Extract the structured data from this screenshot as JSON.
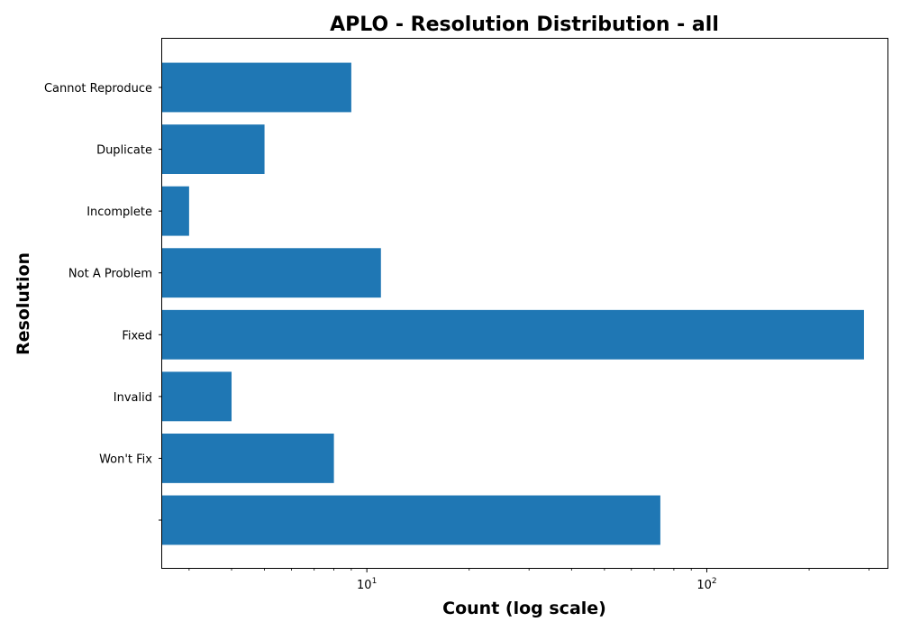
{
  "chart_data": {
    "type": "bar",
    "orientation": "horizontal",
    "title": "APLO - Resolution Distribution - all",
    "xlabel": "Count (log scale)",
    "ylabel": "Resolution",
    "xscale": "log",
    "xlim": [
      2.5,
      340
    ],
    "x_ticks": [
      {
        "value": 10,
        "base": "10",
        "exp": "1"
      },
      {
        "value": 100,
        "base": "10",
        "exp": "2"
      }
    ],
    "categories": [
      "Cannot Reproduce",
      "Duplicate",
      "Incomplete",
      "Not A Problem",
      "Fixed",
      "Invalid",
      "Won't Fix",
      ""
    ],
    "values": [
      9,
      5,
      3,
      11,
      290,
      4,
      8,
      73
    ],
    "bar_color": "#1f77b4"
  }
}
